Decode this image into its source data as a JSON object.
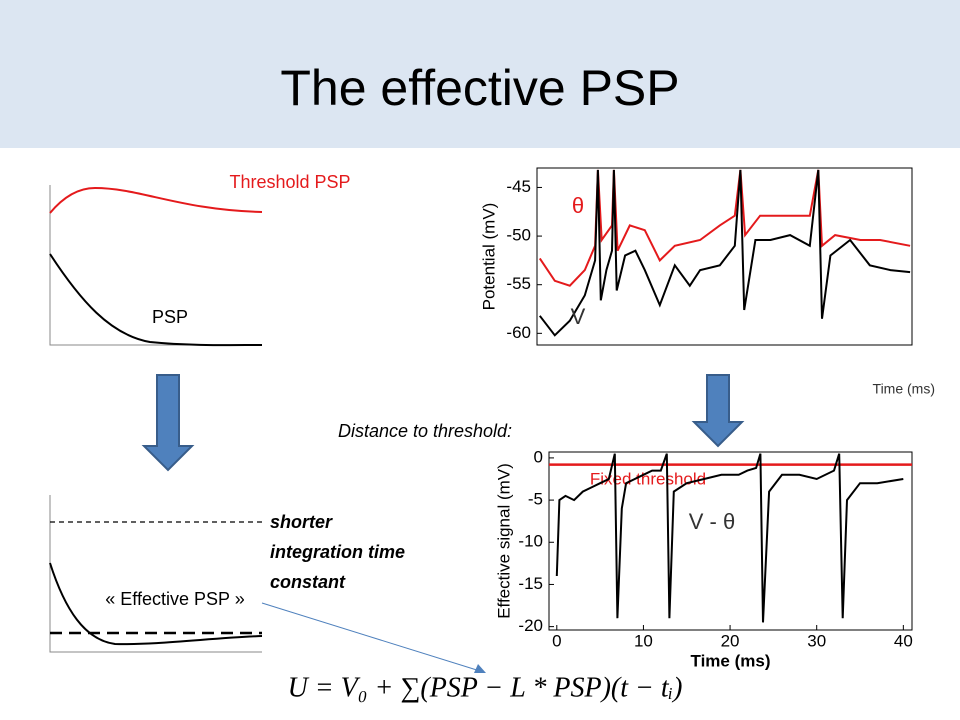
{
  "title": "The effective PSP",
  "left_top_labels": {
    "threshold_psp": "Threshold PSP",
    "psp": "PSP"
  },
  "time_note": "Time (ms)",
  "distance_label": "Distance to threshold:",
  "shorter_note": [
    "shorter",
    "integration time",
    "constant"
  ],
  "effective_psp": "« Effective PSP »",
  "equation": "U = V₀ + ∑(PSP − L * PSP)(t − tᵢ)",
  "top_plot": {
    "type": "line",
    "ylabel": "Potential (mV)",
    "xlim": [
      0,
      40
    ],
    "ylim": [
      -61.2,
      -43
    ],
    "yticks": [
      -45,
      -50,
      -55,
      -60
    ],
    "series": [
      {
        "name": "θ",
        "color": "#e41a1c",
        "x": [
          0.3,
          1.9,
          3.5,
          5.1,
          6.2,
          6.5,
          6.9,
          8.0,
          8.2,
          8.6,
          9.9,
          11.5,
          13.1,
          14.7,
          17.4,
          19.5,
          21.1,
          21.7,
          22.2,
          23.8,
          27.0,
          29.1,
          30.0,
          30.4,
          31.8,
          34.5,
          36.6,
          39.8
        ],
        "values": [
          -52.3,
          -54.6,
          -55.1,
          -53.5,
          -51.0,
          -43.2,
          -50.4,
          -48.9,
          -43.2,
          -51.5,
          -48.9,
          -49.4,
          -52.5,
          -51.0,
          -50.4,
          -48.9,
          -47.9,
          -43.2,
          -49.9,
          -47.9,
          -47.9,
          -47.9,
          -43.2,
          -51.0,
          -49.9,
          -50.4,
          -50.4,
          -51.0
        ]
      },
      {
        "name": "V",
        "color": "#000000",
        "x": [
          0.3,
          1.9,
          3.5,
          5.1,
          6.2,
          6.5,
          6.8,
          7.4,
          8.0,
          8.2,
          8.5,
          9.4,
          10.5,
          11.5,
          13.1,
          14.7,
          16.3,
          17.4,
          19.5,
          21.1,
          21.7,
          22.1,
          23.3,
          24.9,
          27.0,
          29.1,
          30.0,
          30.4,
          31.3,
          33.4,
          35.5,
          37.7,
          39.8
        ],
        "values": [
          -58.2,
          -60.2,
          -58.7,
          -56.1,
          -52.5,
          -43.2,
          -56.6,
          -53.5,
          -51.5,
          -43.2,
          -55.6,
          -52.0,
          -51.5,
          -53.5,
          -57.1,
          -53.0,
          -55.1,
          -53.5,
          -53.0,
          -51.0,
          -43.2,
          -57.6,
          -50.4,
          -50.4,
          -49.9,
          -51.0,
          -43.2,
          -58.5,
          -52.0,
          -50.4,
          -53.0,
          -53.5,
          -53.7
        ]
      }
    ]
  },
  "bottom_plot": {
    "type": "line",
    "xlabel": "Time (ms)",
    "ylabel": "Effective signal (mV)",
    "xlim": [
      -0.9,
      41
    ],
    "ylim": [
      -20.4,
      0.7
    ],
    "xticks": [
      0,
      10,
      20,
      30,
      40
    ],
    "yticks": [
      0,
      -5,
      -10,
      -15,
      -20
    ],
    "threshold": {
      "label": "Fixed threshold",
      "value": -0.8,
      "color": "#e41a1c"
    },
    "series": [
      {
        "name": "V - θ",
        "color": "#000000",
        "x": [
          0,
          0.3,
          1,
          2,
          3,
          4,
          5,
          6,
          6.7,
          7,
          7.5,
          8,
          9,
          10,
          11,
          12,
          12.7,
          13,
          13.5,
          15,
          17,
          19,
          21,
          22,
          23,
          23.5,
          23.8,
          24.5,
          26,
          28,
          30,
          32,
          32.6,
          33,
          33.5,
          35,
          37,
          40
        ],
        "values": [
          -14,
          -5,
          -4.5,
          -5,
          -4,
          -3.5,
          -3,
          -2.5,
          0.5,
          -19,
          -6,
          -3,
          -2.5,
          -2,
          -1.5,
          -1.5,
          0.5,
          -19,
          -4,
          -3,
          -2.5,
          -2,
          -2,
          -1.5,
          -1.2,
          0.5,
          -19.5,
          -4,
          -2,
          -2,
          -2.5,
          -1.5,
          0.5,
          -19,
          -5,
          -3,
          -3,
          -2.5
        ]
      }
    ]
  }
}
